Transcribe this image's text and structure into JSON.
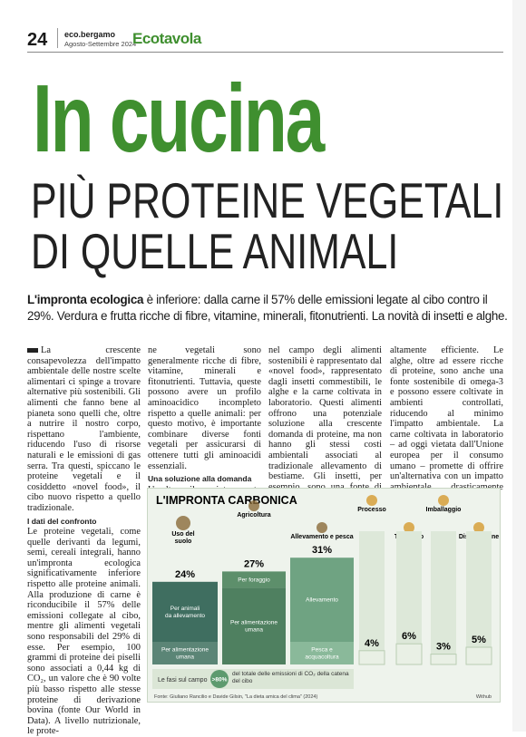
{
  "header": {
    "page_number": "24",
    "publication": "eco.bergamo",
    "issue": "Agosto-Settembre 2024",
    "section": "Ecotavola"
  },
  "title": "In cucina",
  "subtitle_lines": [
    "PIÙ PROTEINE VEGETALI",
    "DI QUELLE ANIMALI"
  ],
  "lead": {
    "bold": "L'impronta ecologica",
    "text": "è inferiore: dalla carne il 57% delle emissioni legate al cibo contro il 29%. Verdura e frutta ricche di fibre, vitamine, minerali, fitonutrienti. La novità di insetti e alghe."
  },
  "columns": [
    [
      {
        "text": "La crescente consapevolezza dell'impatto ambientale delle nostre scelte alimentari ci spinge a trovare alternative più sostenibili. Gli alimenti che fanno bene al pianeta sono quelli che, oltre a nutrire il nostro corpo, rispettano l'ambiente, riducendo l'uso di risorse naturali e le emissioni di gas serra. Tra questi, spiccano le proteine vegetali e il cosiddetto «novel food», il cibo nuovo rispetto a quello tradizionale."
      },
      {
        "heading": "I dati del confronto"
      },
      {
        "text": "Le proteine vegetali, come quelle derivanti da legumi, semi, cereali integrali, hanno un'impronta ecologica significativamente inferiore rispetto alle proteine animali. Alla produzione di carne è riconducibile il 57% delle emissioni collegate al cibo, mentre gli alimenti vegetali sono responsabili del 29% di esse. Per esempio, 100 grammi di proteine dei piselli sono associati a 0,44 kg di CO₂, un valore che è 90 volte più basso rispetto alle stesse proteine di derivazione bovina (fonte Our World in Data). A livello nutrizionale, le prote-"
      }
    ],
    [
      {
        "text": "ne vegetali sono generalmente ricche di fibre, vitamine, minerali e fitonutrienti. Tuttavia, queste possono avere un profilo aminoacidico incompleto rispetto a quelle animali: per questo motivo, è importante combinare diverse fonti vegetali per assicurarsi di ottenere tutti gli aminoacidi essenziali."
      },
      {
        "heading": "Una soluzione alla domanda"
      },
      {
        "text": "Un altro sviluppo interessante"
      }
    ],
    [
      {
        "text": "nel campo degli alimenti sostenibili è rappresentato dal «novel food», rappresentato dagli insetti commestibili, le alghe e la carne coltivata in laboratorio. Questi alimenti offrono una potenziale soluzione alla crescente domanda di proteine, ma non hanno gli stessi costi ambientali associati al tradizionale allevamento di bestiame. Gli insetti, per esempio, sono una fonte di proteine"
      }
    ],
    [
      {
        "text": "altamente efficiente. Le alghe, oltre ad essere ricche di proteine, sono anche una fonte sostenibile di omega-3 e possono essere coltivate in ambienti controllati, riducendo al minimo l'impatto ambientale. La carne coltivata in laboratorio – ad oggi vietata dall'Unione europea per il consumo umano – promette di offrire un'alternativa con un impatto ambientale drasticamente ridotto."
      }
    ]
  ],
  "infographic": {
    "title": "L'IMPRONTA CARBONICA",
    "stages": [
      {
        "label": "Uso del suolo",
        "value": 24,
        "value_label": "24%",
        "segments": [
          "Per animali da allevamento",
          "Per alimentazione umana"
        ]
      },
      {
        "label": "Agricoltura",
        "value": 27,
        "value_label": "27%",
        "segments": [
          "Per foraggio",
          "Per alimentazione umana"
        ]
      },
      {
        "label": "Allevamento e pesca",
        "value": 31,
        "value_label": "31%",
        "segments": [
          "Allevamento",
          "Pesca e acquacoltura"
        ]
      },
      {
        "label": "Processo",
        "value": 4,
        "value_label": "4%"
      },
      {
        "label": "Trasporto",
        "value": 6,
        "value_label": "6%"
      },
      {
        "label": "Imballaggio",
        "value": 3,
        "value_label": "3%"
      },
      {
        "label": "Distribuzione",
        "value": 5,
        "value_label": "5%"
      }
    ],
    "legend": {
      "label": "Le fasi sul campo",
      "badge": ">80%",
      "text": "del totale delle emissioni di CO₂ della catena del cibo"
    },
    "source": "Fonte: Giuliano Rancilio e Davide Gilsin, \"La dieta amica del clima\" (2024)",
    "credit": "Withub"
  }
}
